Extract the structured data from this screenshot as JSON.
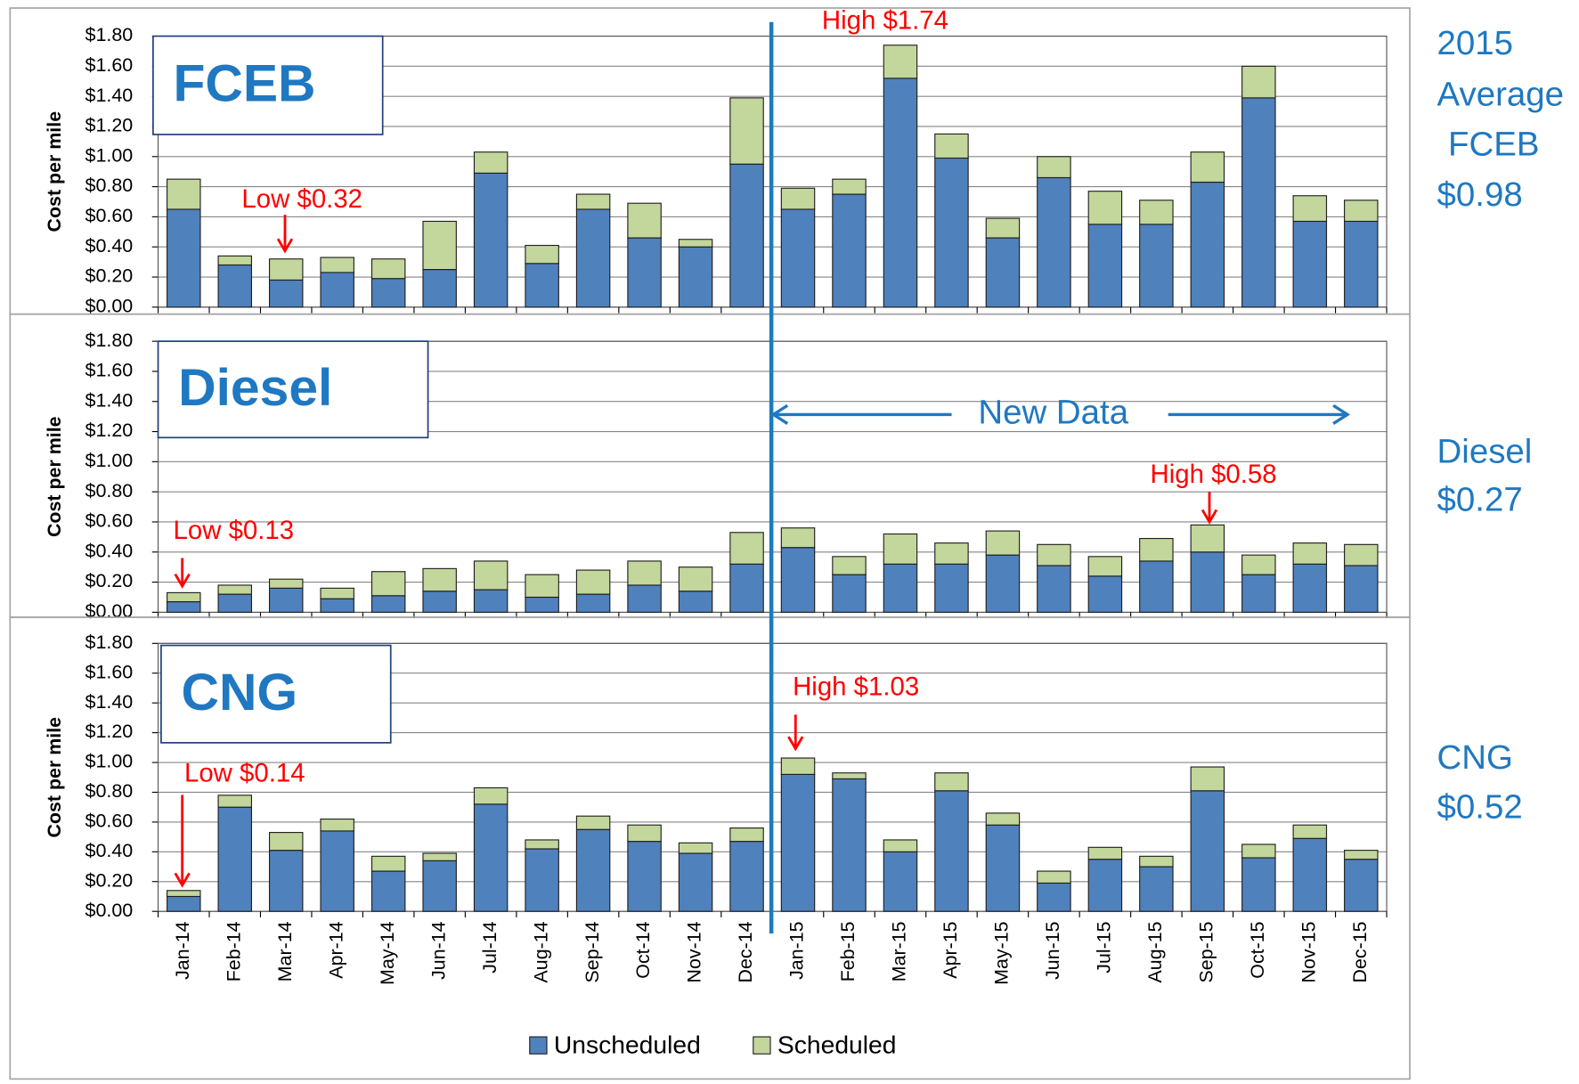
{
  "divider_label": "New Data",
  "chart_data": [
    {
      "type": "bar",
      "stacked": true,
      "title": "FCEB",
      "y_label": "Cost per mile",
      "series": [
        {
          "color": "#4f81bd",
          "values": [
            0.65,
            0.28,
            0.18,
            0.23,
            0.19,
            0.25,
            0.89,
            0.29,
            0.65,
            0.46,
            0.4,
            0.95,
            0.65,
            0.75,
            1.52,
            0.99,
            0.46,
            0.86,
            0.55,
            0.55,
            0.83,
            1.39,
            0.57,
            0.57
          ]
        },
        {
          "color": "#c3d69b",
          "values": [
            0.2,
            0.06,
            0.14,
            0.1,
            0.13,
            0.32,
            0.14,
            0.12,
            0.1,
            0.23,
            0.05,
            0.44,
            0.14,
            0.1,
            0.22,
            0.16,
            0.13,
            0.14,
            0.22,
            0.16,
            0.2,
            0.21,
            0.17,
            0.14
          ]
        }
      ],
      "ylim": [
        0,
        1.8
      ],
      "yticks": [
        {
          "value": 0,
          "label": "$0.00"
        },
        {
          "value": 0.2,
          "label": "$0.20"
        },
        {
          "value": 0.4,
          "label": "$0.40"
        },
        {
          "value": 0.6,
          "label": "$0.60"
        },
        {
          "value": 0.8,
          "label": "$0.80"
        },
        {
          "value": 1.0,
          "label": "$1.00"
        },
        {
          "value": 1.2,
          "label": "$1.20"
        },
        {
          "value": 1.4,
          "label": "$1.40"
        },
        {
          "value": 1.6,
          "label": "$1.60"
        },
        {
          "value": 1.8,
          "label": "$1.80"
        }
      ],
      "grid": true,
      "annotations": [
        "Low $0.32",
        "High $1.74"
      ],
      "note": [
        "2015",
        "Average",
        "FCEB",
        "$0.98"
      ]
    },
    {
      "type": "bar",
      "stacked": true,
      "title": "Diesel",
      "y_label": "Cost per mile",
      "series": [
        {
          "color": "#4f81bd",
          "values": [
            0.07,
            0.12,
            0.16,
            0.09,
            0.11,
            0.14,
            0.15,
            0.1,
            0.12,
            0.18,
            0.14,
            0.32,
            0.43,
            0.25,
            0.32,
            0.32,
            0.38,
            0.31,
            0.24,
            0.34,
            0.4,
            0.25,
            0.32,
            0.31
          ]
        },
        {
          "color": "#c3d69b",
          "values": [
            0.06,
            0.06,
            0.06,
            0.07,
            0.16,
            0.15,
            0.19,
            0.15,
            0.16,
            0.16,
            0.16,
            0.21,
            0.13,
            0.12,
            0.2,
            0.14,
            0.16,
            0.14,
            0.13,
            0.15,
            0.18,
            0.13,
            0.14,
            0.14
          ]
        }
      ],
      "ylim": [
        0,
        1.8
      ],
      "yticks": [
        {
          "value": 0,
          "label": "$0.00"
        },
        {
          "value": 0.2,
          "label": "$0.20"
        },
        {
          "value": 0.4,
          "label": "$0.40"
        },
        {
          "value": 0.6,
          "label": "$0.60"
        },
        {
          "value": 0.8,
          "label": "$0.80"
        },
        {
          "value": 1.0,
          "label": "$1.00"
        },
        {
          "value": 1.2,
          "label": "$1.20"
        },
        {
          "value": 1.4,
          "label": "$1.40"
        },
        {
          "value": 1.6,
          "label": "$1.60"
        },
        {
          "value": 1.8,
          "label": "$1.80"
        }
      ],
      "grid": true,
      "annotations": [
        "Low $0.13",
        "High $0.58"
      ],
      "note": [
        "Diesel",
        "$0.27"
      ]
    },
    {
      "type": "bar",
      "stacked": true,
      "title": "CNG",
      "y_label": "Cost per mile",
      "categories": [
        "Jan-14",
        "Feb-14",
        "Mar-14",
        "Apr-14",
        "May-14",
        "Jun-14",
        "Jul-14",
        "Aug-14",
        "Sep-14",
        "Oct-14",
        "Nov-14",
        "Dec-14",
        "Jan-15",
        "Feb-15",
        "Mar-15",
        "Apr-15",
        "May-15",
        "Jun-15",
        "Jul-15",
        "Aug-15",
        "Sep-15",
        "Oct-15",
        "Nov-15",
        "Dec-15"
      ],
      "series": [
        {
          "name": "Unscheduled",
          "color": "#4f81bd",
          "values": [
            0.1,
            0.7,
            0.41,
            0.54,
            0.27,
            0.34,
            0.72,
            0.42,
            0.55,
            0.47,
            0.39,
            0.47,
            0.92,
            0.89,
            0.4,
            0.81,
            0.58,
            0.19,
            0.35,
            0.3,
            0.81,
            0.36,
            0.49,
            0.35
          ]
        },
        {
          "name": "Scheduled",
          "color": "#c3d69b",
          "values": [
            0.04,
            0.08,
            0.12,
            0.08,
            0.1,
            0.05,
            0.11,
            0.06,
            0.09,
            0.11,
            0.07,
            0.09,
            0.11,
            0.04,
            0.08,
            0.12,
            0.08,
            0.08,
            0.08,
            0.07,
            0.16,
            0.09,
            0.09,
            0.06
          ]
        }
      ],
      "ylim": [
        0,
        1.8
      ],
      "yticks": [
        {
          "value": 0,
          "label": "$0.00"
        },
        {
          "value": 0.2,
          "label": "$0.20"
        },
        {
          "value": 0.4,
          "label": "$0.40"
        },
        {
          "value": 0.6,
          "label": "$0.60"
        },
        {
          "value": 0.8,
          "label": "$0.80"
        },
        {
          "value": 1.0,
          "label": "$1.00"
        },
        {
          "value": 1.2,
          "label": "$1.20"
        },
        {
          "value": 1.4,
          "label": "$1.40"
        },
        {
          "value": 1.6,
          "label": "$1.60"
        },
        {
          "value": 1.8,
          "label": "$1.80"
        }
      ],
      "grid": true,
      "annotations": [
        "High $1.03",
        "Low $0.14"
      ],
      "note": [
        "CNG",
        "$0.52"
      ]
    }
  ]
}
